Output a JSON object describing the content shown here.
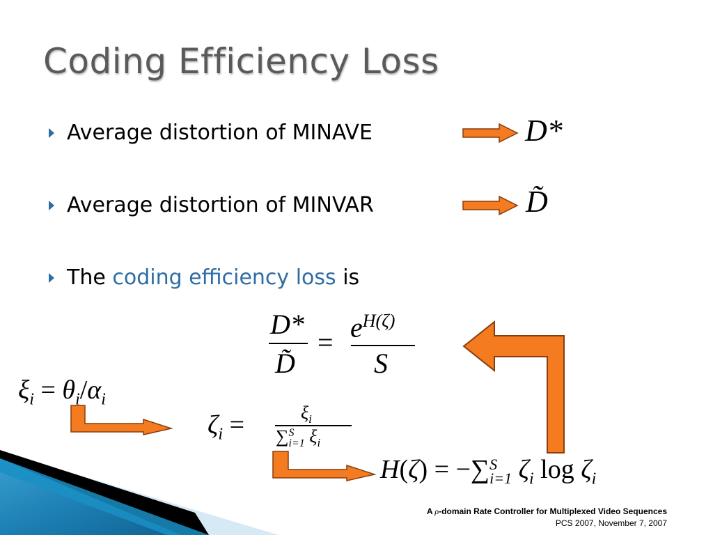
{
  "slide": {
    "title": "Coding Efficiency Loss",
    "bullets": [
      {
        "text": "Average distortion of MINAVE",
        "math": "D*"
      },
      {
        "text": "Average distortion of MINVAR",
        "math": "D̃"
      },
      {
        "text_before": "The ",
        "highlight": "coding efficiency loss",
        "text_after": " is"
      }
    ],
    "equations": {
      "main": {
        "lhs_num": "D*",
        "lhs_den": "D̃",
        "equals": "=",
        "rhs_num": "e^{H(ζ)}",
        "rhs_den": "S"
      },
      "xi": "ξ_i = θ_i/α_i",
      "zeta": {
        "lhs": "ζ_i",
        "num": "ξ_i",
        "den": "∑_{i=1}^{S} ξ_i"
      },
      "entropy": "H(ζ) = −∑_{i=1}^{S} ζ_i log ζ_i"
    },
    "footer": {
      "line1_prefix": "A ",
      "line1_rho": "ρ",
      "line1_suffix": "-domain Rate Controller for Multiplexed Video Sequences",
      "line2": "PCS 2007, November 7, 2007"
    },
    "colors": {
      "title": "#5a5a5a",
      "highlight": "#2e6da4",
      "arrow_fill": "#f47b20",
      "arrow_stroke": "#8a3d0c",
      "corner_blue": "#1d8fc4"
    }
  }
}
